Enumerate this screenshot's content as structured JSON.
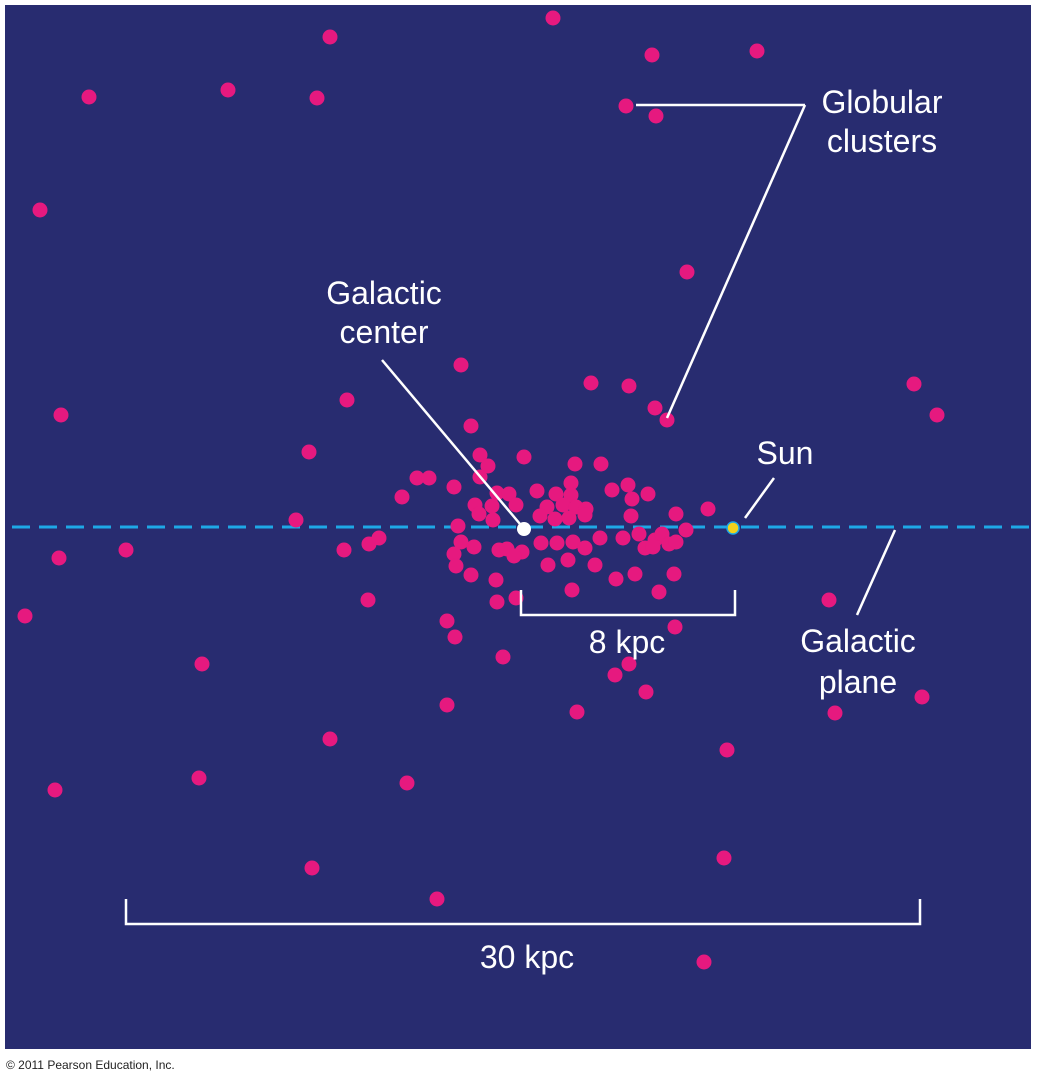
{
  "colors": {
    "background": "#282c70",
    "cluster": "#e6197f",
    "plane": "#1ea8e6",
    "center": "#ffffff",
    "sun": "#f2d21b",
    "line": "#ffffff"
  },
  "labels": {
    "globular_line1": "Globular",
    "globular_line2": "clusters",
    "center_line1": "Galactic",
    "center_line2": "center",
    "sun": "Sun",
    "plane_line1": "Galactic",
    "plane_line2": "plane",
    "scale_small": "8 kpc",
    "scale_large": "30 kpc"
  },
  "credit": "© 2011 Pearson Education, Inc."
}
